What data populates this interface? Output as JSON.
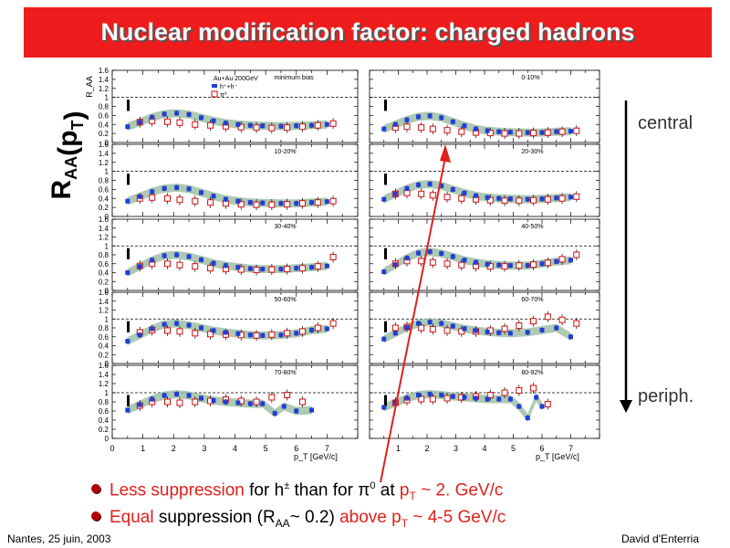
{
  "slide": {
    "title": "Nuclear modification factor: charged hadrons",
    "ylabel_main": "R",
    "ylabel_sub": "AA",
    "ylabel_arg": "(p",
    "ylabel_arg_sub": "T",
    "ylabel_close": ")",
    "central_label": "central",
    "periph_label": "periph.",
    "footer_left": "Nantes, 25 juin, 2003",
    "footer_right": "David d'Enterria",
    "bullets": [
      {
        "p1_red": "Less suppression",
        "p2": " for h",
        "p2_sup": "±",
        "p3": " than for π",
        "p3_sup": "0",
        "p4": " at ",
        "p5_red": "p",
        "p5_sub": "T",
        "p6_red": " ~ 2. GeV/c"
      },
      {
        "p1_red": "Equal",
        "p2": " suppression (R",
        "p2_sub": "AA",
        "p3": "~ 0.2) ",
        "p4_red": "above p",
        "p4_sub": "T",
        "p5_red": " ~ 4-5 GeV/c"
      }
    ],
    "colors": {
      "title_bg": "#ee1c1c",
      "accent_red": "#e0201c",
      "hadron_blue": "#1f3fd6",
      "pi0_red": "#d01010",
      "band": "#9fbfa6"
    }
  },
  "chart_data": {
    "type": "scatter",
    "collision_label": "Au+Au 200GeV",
    "legend": [
      "h⁺+h⁻",
      "π⁰"
    ],
    "ylabel_small": "R_AA",
    "xlabel": "p_T [GeV/c]",
    "xlim": [
      0,
      8
    ],
    "ylim": [
      0,
      1.6
    ],
    "xticks": [
      "0",
      "1",
      "2",
      "3",
      "4",
      "5",
      "6",
      "7"
    ],
    "yticks": [
      "0",
      "0.2",
      "0.4",
      "0.6",
      "0.8",
      "1",
      "1.2",
      "1.4",
      "1.6"
    ],
    "panels": [
      {
        "label": "minimum bias",
        "hadrons": {
          "x": [
            0.5,
            0.9,
            1.3,
            1.7,
            2.1,
            2.5,
            2.9,
            3.3,
            3.7,
            4.1,
            4.5,
            4.9,
            5.5,
            6.0,
            6.5,
            7.0
          ],
          "y": [
            0.35,
            0.45,
            0.56,
            0.63,
            0.65,
            0.62,
            0.55,
            0.48,
            0.43,
            0.4,
            0.38,
            0.37,
            0.36,
            0.37,
            0.38,
            0.4
          ]
        },
        "pi0": {
          "x": [
            0.9,
            1.3,
            1.8,
            2.2,
            2.7,
            3.2,
            3.7,
            4.2,
            4.7,
            5.2,
            5.7,
            6.2,
            6.7,
            7.2
          ],
          "y": [
            0.45,
            0.48,
            0.46,
            0.44,
            0.4,
            0.38,
            0.36,
            0.34,
            0.33,
            0.32,
            0.33,
            0.35,
            0.38,
            0.42
          ]
        }
      },
      {
        "label": "0-10%",
        "hadrons": {
          "x": [
            0.5,
            0.9,
            1.3,
            1.7,
            2.1,
            2.5,
            2.9,
            3.3,
            3.7,
            4.1,
            4.5,
            4.9,
            5.5,
            6.0,
            6.5,
            7.0
          ],
          "y": [
            0.3,
            0.4,
            0.5,
            0.57,
            0.59,
            0.55,
            0.46,
            0.37,
            0.3,
            0.26,
            0.24,
            0.23,
            0.22,
            0.22,
            0.24,
            0.25
          ]
        },
        "pi0": {
          "x": [
            0.9,
            1.3,
            1.8,
            2.2,
            2.7,
            3.2,
            3.7,
            4.2,
            4.7,
            5.2,
            5.7,
            6.2,
            6.7,
            7.2
          ],
          "y": [
            0.33,
            0.35,
            0.33,
            0.3,
            0.27,
            0.24,
            0.22,
            0.21,
            0.2,
            0.2,
            0.21,
            0.22,
            0.24,
            0.26
          ]
        }
      },
      {
        "label": "10-20%",
        "hadrons": {
          "x": [
            0.5,
            0.9,
            1.3,
            1.7,
            2.1,
            2.5,
            2.9,
            3.3,
            3.7,
            4.1,
            4.5,
            4.9,
            5.5,
            6.0,
            6.5,
            7.0
          ],
          "y": [
            0.34,
            0.44,
            0.55,
            0.62,
            0.64,
            0.61,
            0.53,
            0.45,
            0.38,
            0.34,
            0.31,
            0.3,
            0.29,
            0.29,
            0.31,
            0.33
          ]
        },
        "pi0": {
          "x": [
            0.9,
            1.3,
            1.8,
            2.2,
            2.7,
            3.2,
            3.7,
            4.2,
            4.7,
            5.2,
            5.7,
            6.2,
            6.7,
            7.2
          ],
          "y": [
            0.4,
            0.42,
            0.4,
            0.37,
            0.34,
            0.31,
            0.29,
            0.27,
            0.26,
            0.26,
            0.27,
            0.29,
            0.31,
            0.34
          ]
        }
      },
      {
        "label": "20-30%",
        "hadrons": {
          "x": [
            0.5,
            0.9,
            1.3,
            1.7,
            2.1,
            2.5,
            2.9,
            3.3,
            3.7,
            4.1,
            4.5,
            4.9,
            5.5,
            6.0,
            6.5,
            7.0
          ],
          "y": [
            0.38,
            0.5,
            0.62,
            0.7,
            0.72,
            0.68,
            0.6,
            0.52,
            0.46,
            0.42,
            0.4,
            0.39,
            0.38,
            0.39,
            0.41,
            0.43
          ]
        },
        "pi0": {
          "x": [
            0.9,
            1.3,
            1.8,
            2.2,
            2.7,
            3.2,
            3.7,
            4.2,
            4.7,
            5.2,
            5.7,
            6.2,
            6.7,
            7.2
          ],
          "y": [
            0.5,
            0.52,
            0.5,
            0.47,
            0.43,
            0.4,
            0.38,
            0.36,
            0.35,
            0.35,
            0.36,
            0.38,
            0.4,
            0.44
          ]
        }
      },
      {
        "label": "30-40%",
        "hadrons": {
          "x": [
            0.5,
            0.9,
            1.3,
            1.7,
            2.1,
            2.5,
            2.9,
            3.3,
            3.7,
            4.1,
            4.5,
            4.9,
            5.5,
            6.0,
            6.5,
            7.0
          ],
          "y": [
            0.4,
            0.54,
            0.68,
            0.78,
            0.8,
            0.76,
            0.69,
            0.61,
            0.56,
            0.52,
            0.49,
            0.48,
            0.48,
            0.5,
            0.52,
            0.55
          ]
        },
        "pi0": {
          "x": [
            0.9,
            1.3,
            1.8,
            2.2,
            2.7,
            3.2,
            3.7,
            4.2,
            4.7,
            5.2,
            5.7,
            6.2,
            6.7,
            7.2
          ],
          "y": [
            0.55,
            0.6,
            0.6,
            0.57,
            0.54,
            0.5,
            0.48,
            0.47,
            0.46,
            0.47,
            0.48,
            0.5,
            0.54,
            0.75
          ]
        }
      },
      {
        "label": "40-50%",
        "hadrons": {
          "x": [
            0.5,
            0.9,
            1.3,
            1.7,
            2.1,
            2.5,
            2.9,
            3.3,
            3.7,
            4.1,
            4.5,
            4.9,
            5.5,
            6.0,
            6.5,
            7.0
          ],
          "y": [
            0.42,
            0.58,
            0.73,
            0.84,
            0.87,
            0.83,
            0.76,
            0.68,
            0.63,
            0.59,
            0.57,
            0.56,
            0.56,
            0.6,
            0.65,
            0.68
          ]
        },
        "pi0": {
          "x": [
            0.9,
            1.3,
            1.8,
            2.2,
            2.7,
            3.2,
            3.7,
            4.2,
            4.7,
            5.2,
            5.7,
            6.2,
            6.7,
            7.2
          ],
          "y": [
            0.6,
            0.66,
            0.66,
            0.63,
            0.6,
            0.57,
            0.55,
            0.54,
            0.54,
            0.56,
            0.58,
            0.62,
            0.7,
            0.8
          ]
        }
      },
      {
        "label": "50-60%",
        "hadrons": {
          "x": [
            0.5,
            0.9,
            1.3,
            1.7,
            2.1,
            2.5,
            2.9,
            3.3,
            3.7,
            4.1,
            4.5,
            4.9,
            5.5,
            6.0,
            6.5,
            7.0
          ],
          "y": [
            0.5,
            0.64,
            0.78,
            0.88,
            0.9,
            0.86,
            0.8,
            0.74,
            0.7,
            0.67,
            0.64,
            0.63,
            0.64,
            0.68,
            0.75,
            0.78
          ]
        },
        "pi0": {
          "x": [
            0.9,
            1.3,
            1.8,
            2.2,
            2.7,
            3.2,
            3.7,
            4.2,
            4.7,
            5.2,
            5.7,
            6.2,
            6.7,
            7.2
          ],
          "y": [
            0.7,
            0.75,
            0.74,
            0.72,
            0.68,
            0.66,
            0.65,
            0.64,
            0.63,
            0.65,
            0.68,
            0.72,
            0.8,
            0.9
          ]
        }
      },
      {
        "label": "60-70%",
        "hadrons": {
          "x": [
            0.5,
            0.9,
            1.3,
            1.7,
            2.1,
            2.5,
            2.9,
            3.3,
            3.7,
            4.1,
            4.5,
            4.9,
            5.5,
            6.0,
            6.5,
            7.0
          ],
          "y": [
            0.55,
            0.68,
            0.81,
            0.9,
            0.93,
            0.9,
            0.84,
            0.78,
            0.74,
            0.71,
            0.69,
            0.68,
            0.7,
            0.75,
            0.8,
            0.6
          ]
        },
        "pi0": {
          "x": [
            0.9,
            1.3,
            1.8,
            2.2,
            2.7,
            3.2,
            3.7,
            4.2,
            4.7,
            5.2,
            5.7,
            6.2,
            6.7,
            7.2
          ],
          "y": [
            0.8,
            0.82,
            0.8,
            0.77,
            0.74,
            0.72,
            0.72,
            0.74,
            0.78,
            0.85,
            0.95,
            1.05,
            0.98,
            0.9
          ]
        }
      },
      {
        "label": "70-80%",
        "hadrons": {
          "x": [
            0.5,
            0.9,
            1.3,
            1.7,
            2.1,
            2.5,
            2.9,
            3.3,
            3.7,
            4.1,
            4.5,
            4.9,
            5.3,
            5.6,
            6.0,
            6.5
          ],
          "y": [
            0.62,
            0.74,
            0.86,
            0.94,
            0.97,
            0.94,
            0.88,
            0.83,
            0.8,
            0.78,
            0.76,
            0.76,
            0.55,
            0.7,
            0.6,
            0.62
          ]
        },
        "pi0": {
          "x": [
            0.9,
            1.3,
            1.8,
            2.2,
            2.7,
            3.2,
            3.7,
            4.2,
            4.7,
            5.2,
            5.7,
            6.2
          ],
          "y": [
            0.72,
            0.8,
            0.8,
            0.78,
            0.8,
            0.82,
            0.85,
            0.82,
            0.8,
            0.9,
            0.95,
            0.8
          ]
        }
      },
      {
        "label": "80-92%",
        "hadrons": {
          "x": [
            0.5,
            0.9,
            1.3,
            1.7,
            2.1,
            2.5,
            2.9,
            3.3,
            3.7,
            4.1,
            4.5,
            4.9,
            5.2,
            5.5,
            5.8,
            6.0
          ],
          "y": [
            0.68,
            0.78,
            0.88,
            0.95,
            0.97,
            0.95,
            0.92,
            0.9,
            0.88,
            0.86,
            0.86,
            0.86,
            0.7,
            0.45,
            0.9,
            0.7
          ]
        },
        "pi0": {
          "x": [
            0.9,
            1.3,
            1.8,
            2.2,
            2.7,
            3.2,
            3.7,
            4.2,
            4.7,
            5.2,
            5.7,
            6.2
          ],
          "y": [
            0.78,
            0.84,
            0.86,
            0.86,
            0.88,
            0.9,
            0.92,
            0.95,
            1.0,
            1.05,
            1.1,
            0.75
          ]
        }
      }
    ]
  }
}
